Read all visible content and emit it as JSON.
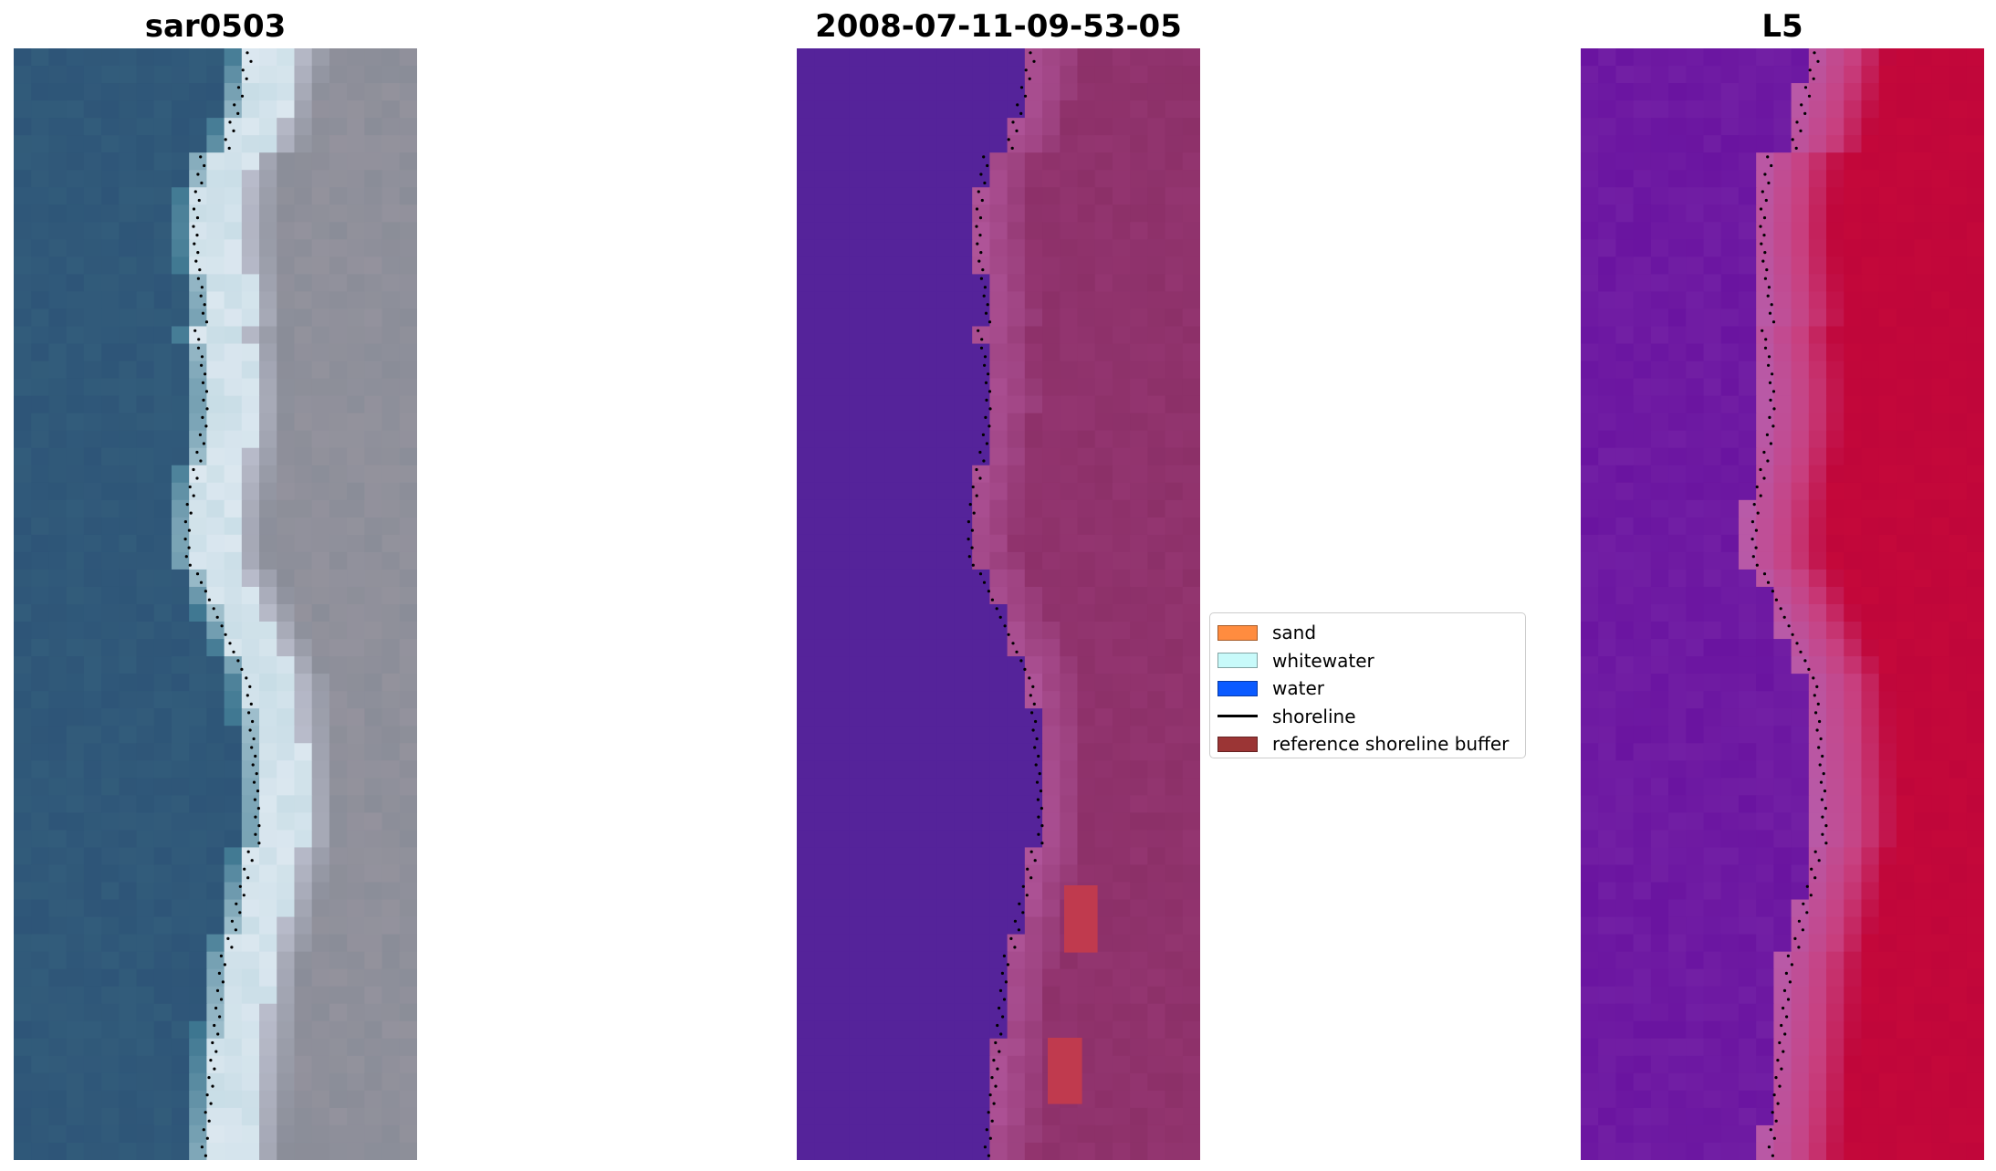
{
  "panels": [
    {
      "title": "sar0503"
    },
    {
      "title": "2008-07-11-09-53-05"
    },
    {
      "title": "L5"
    }
  ],
  "legend": {
    "items": [
      {
        "label": "sand",
        "color": "#ff8c3f",
        "kind": "patch"
      },
      {
        "label": "whitewater",
        "color": "#c8fafa",
        "kind": "patch"
      },
      {
        "label": "water",
        "color": "#0a5aff",
        "kind": "patch"
      },
      {
        "label": "shoreline",
        "color": "#000000",
        "kind": "line"
      },
      {
        "label": "reference shoreline buffer",
        "color": "#9b3535",
        "kind": "patch"
      }
    ]
  },
  "colors": {
    "rgb_water": "#2e5578",
    "rgb_surf": "#c8dde6",
    "rgb_land": "#8a8d98",
    "class_water": "#55239a",
    "class_land": "#8c3068",
    "class_edge": "#b0559a",
    "class_buffer": "#c03a4e",
    "index_water": "#6a14a0",
    "index_land": "#c0063a",
    "shoreline": "#000000"
  }
}
